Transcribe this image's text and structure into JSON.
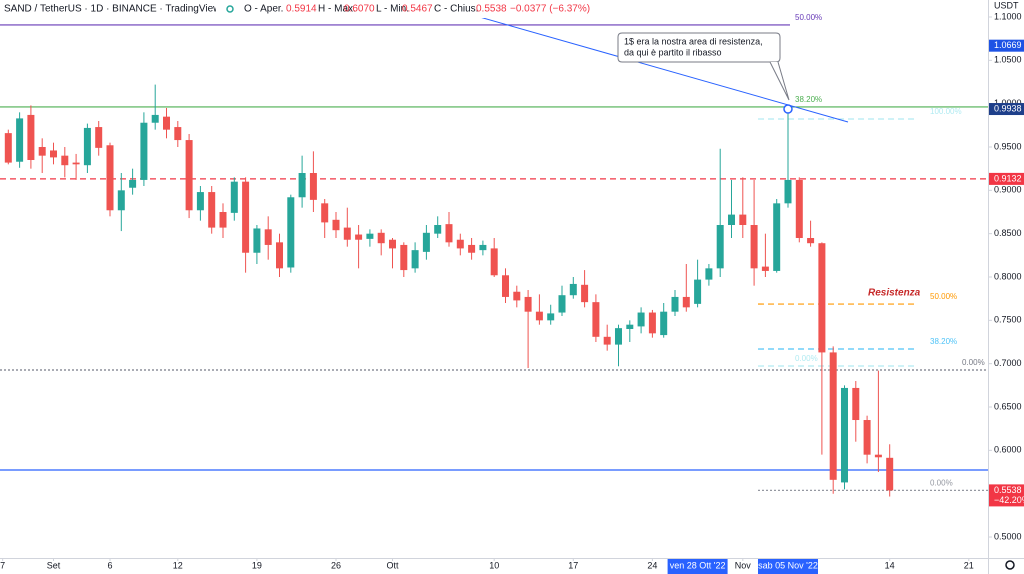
{
  "chart_data": {
    "type": "candlestick",
    "title": "SAND / TetherUS · 1D · BINANCE · TradingView",
    "legend_labels": [
      "O - Aper.",
      "H - Max.",
      "L - Min.",
      "C - Chius."
    ],
    "legend_values": [
      "0.5914",
      "0.6070",
      "0.5467",
      "0.5538"
    ],
    "legend_change": "−0.0377 (−6.37%)",
    "currency": "USDT",
    "up_color": "#26a69a",
    "down_color": "#ef5350",
    "open": [
      0.966,
      0.933,
      0.987,
      0.95,
      0.946,
      0.94,
      0.932,
      0.929,
      0.973,
      0.952,
      0.877,
      0.903,
      0.912,
      0.978,
      0.985,
      0.973,
      0.958,
      0.877,
      0.898,
      0.875,
      0.874,
      0.91,
      0.828,
      0.855,
      0.84,
      0.811,
      0.892,
      0.92,
      0.885,
      0.866,
      0.857,
      0.849,
      0.844,
      0.851,
      0.843,
      0.837,
      0.81,
      0.829,
      0.85,
      0.861,
      0.843,
      0.837,
      0.831,
      0.833,
      0.802,
      0.783,
      0.777,
      0.76,
      0.75,
      0.759,
      0.779,
      0.791,
      0.771,
      0.731,
      0.722,
      0.74,
      0.743,
      0.759,
      0.733,
      0.76,
      0.777,
      0.769,
      0.797,
      0.81,
      0.86,
      0.872,
      0.86,
      0.812,
      0.807,
      0.885,
      0.912,
      0.845,
      0.839,
      0.713,
      0.563,
      0.672,
      0.635,
      0.595,
      0.5914
    ],
    "high": [
      0.97,
      0.99,
      0.998,
      0.96,
      0.955,
      0.95,
      0.942,
      0.977,
      0.98,
      0.955,
      0.92,
      0.925,
      0.99,
      1.022,
      0.995,
      0.98,
      0.965,
      0.905,
      0.905,
      0.885,
      0.915,
      0.915,
      0.86,
      0.87,
      0.85,
      0.895,
      0.94,
      0.945,
      0.89,
      0.875,
      0.88,
      0.86,
      0.855,
      0.855,
      0.845,
      0.84,
      0.84,
      0.86,
      0.87,
      0.875,
      0.85,
      0.845,
      0.842,
      0.845,
      0.81,
      0.79,
      0.785,
      0.78,
      0.768,
      0.79,
      0.8,
      0.808,
      0.78,
      0.745,
      0.745,
      0.75,
      0.765,
      0.762,
      0.77,
      0.785,
      0.815,
      0.82,
      0.815,
      0.948,
      0.912,
      0.915,
      0.912,
      0.85,
      0.89,
      0.9938,
      0.915,
      0.865,
      0.84,
      0.72,
      0.675,
      0.68,
      0.64,
      0.692,
      0.607
    ],
    "low": [
      0.93,
      0.926,
      0.925,
      0.92,
      0.93,
      0.915,
      0.912,
      0.92,
      0.94,
      0.87,
      0.853,
      0.895,
      0.905,
      0.97,
      0.96,
      0.95,
      0.868,
      0.865,
      0.85,
      0.845,
      0.865,
      0.805,
      0.815,
      0.82,
      0.8,
      0.805,
      0.88,
      0.875,
      0.845,
      0.845,
      0.835,
      0.81,
      0.835,
      0.825,
      0.81,
      0.8,
      0.805,
      0.82,
      0.845,
      0.835,
      0.825,
      0.82,
      0.825,
      0.8,
      0.77,
      0.765,
      0.695,
      0.745,
      0.745,
      0.755,
      0.775,
      0.765,
      0.725,
      0.715,
      0.697,
      0.725,
      0.735,
      0.73,
      0.73,
      0.755,
      0.76,
      0.765,
      0.79,
      0.8,
      0.845,
      0.845,
      0.79,
      0.8,
      0.805,
      0.88,
      0.84,
      0.835,
      0.595,
      0.55,
      0.555,
      0.61,
      0.585,
      0.575,
      0.5467
    ],
    "close": [
      0.932,
      0.983,
      0.935,
      0.94,
      0.938,
      0.929,
      0.93,
      0.972,
      0.949,
      0.877,
      0.9,
      0.912,
      0.978,
      0.987,
      0.97,
      0.958,
      0.877,
      0.898,
      0.857,
      0.857,
      0.91,
      0.828,
      0.856,
      0.837,
      0.81,
      0.892,
      0.92,
      0.889,
      0.863,
      0.854,
      0.843,
      0.843,
      0.85,
      0.839,
      0.833,
      0.808,
      0.831,
      0.851,
      0.86,
      0.84,
      0.833,
      0.828,
      0.837,
      0.802,
      0.777,
      0.773,
      0.76,
      0.75,
      0.758,
      0.779,
      0.792,
      0.771,
      0.731,
      0.722,
      0.741,
      0.745,
      0.759,
      0.735,
      0.76,
      0.777,
      0.765,
      0.797,
      0.81,
      0.86,
      0.872,
      0.86,
      0.81,
      0.807,
      0.885,
      0.912,
      0.845,
      0.839,
      0.713,
      0.566,
      0.672,
      0.635,
      0.595,
      0.592,
      0.5538
    ],
    "xlim": [
      -0.735,
      86.7
    ],
    "ylim": [
      0.4758,
      1.1196
    ],
    "yticks": [
      {
        "value": 1.1,
        "label": "1.1000"
      },
      {
        "value": 1.05,
        "label": "1.0500"
      },
      {
        "value": 1.0,
        "label": "1.0000"
      },
      {
        "value": 0.95,
        "label": "0.9500"
      },
      {
        "value": 0.9,
        "label": "0.9000"
      },
      {
        "value": 0.85,
        "label": "0.8500"
      },
      {
        "value": 0.8,
        "label": "0.8000"
      },
      {
        "value": 0.75,
        "label": "0.7500"
      },
      {
        "value": 0.7,
        "label": "0.7000"
      },
      {
        "value": 0.65,
        "label": "0.6500"
      },
      {
        "value": 0.6,
        "label": "0.6000"
      },
      {
        "value": 0.5,
        "label": "0.5000"
      }
    ],
    "xticks": [
      {
        "value": -0.5,
        "label": "7"
      },
      {
        "value": 4,
        "label": "Set"
      },
      {
        "value": 9,
        "label": "6"
      },
      {
        "value": 15,
        "label": "12"
      },
      {
        "value": 22,
        "label": "19"
      },
      {
        "value": 29,
        "label": "26"
      },
      {
        "value": 34,
        "label": "Ott"
      },
      {
        "value": 43,
        "label": "10"
      },
      {
        "value": 50,
        "label": "17"
      },
      {
        "value": 57,
        "label": "24"
      },
      {
        "value": 65,
        "label": "Nov"
      },
      {
        "value": 78,
        "label": "14"
      },
      {
        "value": 85,
        "label": "21"
      }
    ],
    "xhighlights": [
      {
        "value": 61,
        "label": "ven 28 Ott '22"
      },
      {
        "value": 69,
        "label": "sab 05 Nov '22"
      }
    ],
    "levels": [
      {
        "value": 1.0908,
        "color": "#673ab7",
        "style": "solid",
        "label": "50.00%"
      },
      {
        "value": 0.9962,
        "color": "#4caf50",
        "style": "solid",
        "label": "38.20%"
      },
      {
        "value": 0.9132,
        "color": "#f23645",
        "style": "dashed"
      },
      {
        "value": 0.5773,
        "color": "#2962ff",
        "style": "solid"
      },
      {
        "value": 0.6927,
        "color": "#787b86",
        "style": "dotted",
        "label": "0.00%"
      },
      {
        "value": 0.9823,
        "color": "#b2ebf2",
        "style": "dashed",
        "label": "100.00%"
      },
      {
        "value": 0.7688,
        "color": "#ff9800",
        "style": "dashed",
        "label": "50.00%"
      },
      {
        "value": 0.7169,
        "color": "#4fc3f7",
        "style": "dashed",
        "label": "38.20%"
      },
      {
        "value": 0.6973,
        "color": "#b2ebf2",
        "style": "dashed",
        "label": "0.00%"
      },
      {
        "value": 0.5538,
        "color": "#9598a1",
        "style": "dotted",
        "label": "0.00%"
      }
    ],
    "axis_badges": [
      {
        "value": 1.0669,
        "color": "#1e53e5"
      },
      {
        "value": 0.9938,
        "color": "#1e3f8a"
      },
      {
        "value": 0.9132,
        "color": "#f23645"
      },
      {
        "value": 0.5538,
        "color": "#f23645",
        "sublabel": "−42.20%"
      }
    ],
    "callout": [
      "1$ era la nostra area di resistenza,",
      "da qui è partito il ribasso"
    ],
    "zone_label": "Resistenza"
  }
}
